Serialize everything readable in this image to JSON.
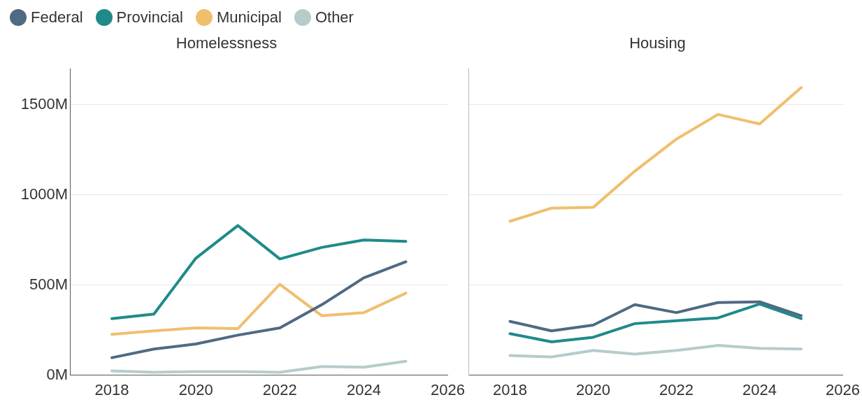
{
  "chart_data": [
    {
      "type": "line",
      "title": "Homelessness",
      "x": [
        2018,
        2019,
        2020,
        2021,
        2022,
        2023,
        2024,
        2025
      ],
      "xlim": [
        2017,
        2026
      ],
      "xticks": [
        2018,
        2020,
        2022,
        2024,
        2026
      ],
      "ylim": [
        0,
        1700
      ],
      "yticks": [
        {
          "value": 0,
          "label": "0M"
        },
        {
          "value": 500,
          "label": "500M"
        },
        {
          "value": 1000,
          "label": "1000M"
        },
        {
          "value": 1500,
          "label": "1500M"
        }
      ],
      "grid": "y",
      "legend": "top left",
      "marker": "none",
      "line_style": "solid",
      "series": [
        {
          "name": "Federal",
          "color": "#4f6a82",
          "values": [
            97,
            145,
            173,
            222,
            262,
            391,
            540,
            629
          ]
        },
        {
          "name": "Provincial",
          "color": "#1f8a8a",
          "values": [
            314,
            339,
            649,
            830,
            645,
            709,
            750,
            742
          ]
        },
        {
          "name": "Municipal",
          "color": "#f0bf6e",
          "values": [
            226,
            246,
            262,
            258,
            504,
            330,
            347,
            455
          ]
        },
        {
          "name": "Other",
          "color": "#b5cccb",
          "values": [
            24,
            16,
            20,
            20,
            16,
            48,
            44,
            77
          ]
        }
      ]
    },
    {
      "type": "line",
      "title": "Housing",
      "x": [
        2018,
        2019,
        2020,
        2021,
        2022,
        2023,
        2024,
        2025
      ],
      "xlim": [
        2017,
        2026
      ],
      "xticks": [
        2018,
        2020,
        2022,
        2024,
        2026
      ],
      "ylim": [
        0,
        1700
      ],
      "yticks": [
        0,
        500,
        1000,
        1500
      ],
      "tick_labels": "x",
      "grid": "y",
      "marker": "none",
      "line_style": "solid",
      "series": [
        {
          "color": "#4f6a82",
          "values": [
            298,
            246,
            278,
            391,
            347,
            403,
            407,
            330
          ]
        },
        {
          "color": "#1f8a8a",
          "values": [
            230,
            185,
            210,
            286,
            302,
            318,
            395,
            314
          ]
        },
        {
          "color": "#f0bf6e",
          "values": [
            854,
            927,
            931,
            1132,
            1310,
            1447,
            1394,
            1596
          ]
        },
        {
          "color": "#b5cccb",
          "values": [
            109,
            101,
            137,
            117,
            137,
            165,
            149,
            145
          ]
        }
      ]
    }
  ]
}
